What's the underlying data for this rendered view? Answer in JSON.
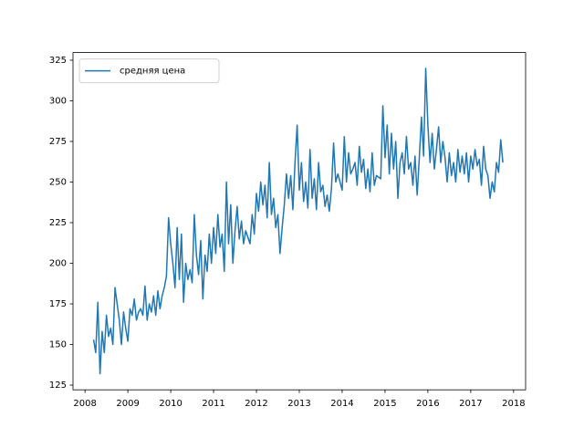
{
  "chart_data": {
    "type": "line",
    "x": [
      2008.2,
      2008.25,
      2008.3,
      2008.35,
      2008.4,
      2008.45,
      2008.5,
      2008.55,
      2008.6,
      2008.65,
      2008.7,
      2008.75,
      2008.8,
      2008.85,
      2008.9,
      2008.95,
      2009,
      2009.05,
      2009.1,
      2009.15,
      2009.2,
      2009.25,
      2009.3,
      2009.35,
      2009.4,
      2009.45,
      2009.5,
      2009.55,
      2009.6,
      2009.65,
      2009.7,
      2009.75,
      2009.8,
      2009.85,
      2009.9,
      2009.95,
      2010,
      2010.05,
      2010.1,
      2010.15,
      2010.2,
      2010.25,
      2010.3,
      2010.35,
      2010.4,
      2010.45,
      2010.5,
      2010.55,
      2010.6,
      2010.65,
      2010.7,
      2010.75,
      2010.8,
      2010.85,
      2010.9,
      2010.95,
      2011,
      2011.05,
      2011.1,
      2011.15,
      2011.2,
      2011.25,
      2011.3,
      2011.35,
      2011.4,
      2011.45,
      2011.5,
      2011.55,
      2011.6,
      2011.65,
      2011.7,
      2011.75,
      2011.8,
      2011.85,
      2011.9,
      2011.95,
      2012,
      2012.05,
      2012.1,
      2012.15,
      2012.2,
      2012.25,
      2012.3,
      2012.35,
      2012.4,
      2012.45,
      2012.5,
      2012.55,
      2012.6,
      2012.65,
      2012.7,
      2012.75,
      2012.8,
      2012.85,
      2012.9,
      2012.95,
      2013,
      2013.05,
      2013.1,
      2013.15,
      2013.2,
      2013.25,
      2013.3,
      2013.35,
      2013.4,
      2013.45,
      2013.5,
      2013.55,
      2013.6,
      2013.65,
      2013.7,
      2013.75,
      2013.8,
      2013.85,
      2013.9,
      2013.95,
      2014,
      2014.05,
      2014.1,
      2014.15,
      2014.2,
      2014.25,
      2014.3,
      2014.35,
      2014.4,
      2014.45,
      2014.5,
      2014.55,
      2014.6,
      2014.65,
      2014.7,
      2014.75,
      2014.8,
      2014.85,
      2014.9,
      2014.95,
      2015,
      2015.05,
      2015.1,
      2015.15,
      2015.2,
      2015.25,
      2015.3,
      2015.35,
      2015.4,
      2015.45,
      2015.5,
      2015.55,
      2015.6,
      2015.65,
      2015.7,
      2015.75,
      2015.8,
      2015.85,
      2015.9,
      2015.95,
      2016,
      2016.05,
      2016.1,
      2016.15,
      2016.2,
      2016.25,
      2016.3,
      2016.35,
      2016.4,
      2016.45,
      2016.5,
      2016.55,
      2016.6,
      2016.65,
      2016.7,
      2016.75,
      2016.8,
      2016.85,
      2016.9,
      2016.95,
      2017,
      2017.05,
      2017.1,
      2017.15,
      2017.2,
      2017.25,
      2017.3,
      2017.35,
      2017.4,
      2017.45,
      2017.5,
      2017.55,
      2017.6,
      2017.65,
      2017.7,
      2017.75
    ],
    "series": [
      {
        "name": "средняя цена",
        "color": "#1f77b4",
        "values": [
          153,
          145,
          176,
          132,
          158,
          145,
          168,
          155,
          160,
          150,
          185,
          175,
          165,
          150,
          170,
          160,
          152,
          172,
          168,
          178,
          165,
          170,
          172,
          168,
          186,
          165,
          175,
          170,
          180,
          168,
          183,
          172,
          180,
          185,
          192,
          228,
          212,
          200,
          185,
          222,
          190,
          218,
          176,
          200,
          190,
          196,
          188,
          230,
          205,
          193,
          214,
          178,
          205,
          195,
          218,
          200,
          222,
          206,
          230,
          210,
          218,
          195,
          250,
          212,
          236,
          200,
          220,
          235,
          215,
          226,
          212,
          220,
          216,
          212,
          230,
          218,
          243,
          232,
          250,
          236,
          248,
          228,
          262,
          230,
          240,
          222,
          230,
          206,
          222,
          236,
          255,
          240,
          254,
          233,
          262,
          285,
          245,
          262,
          238,
          250,
          234,
          270,
          240,
          252,
          233,
          262,
          244,
          248,
          235,
          242,
          232,
          246,
          274,
          250,
          255,
          250,
          245,
          278,
          250,
          268,
          255,
          258,
          262,
          248,
          272,
          256,
          264,
          246,
          258,
          244,
          268,
          248,
          254,
          253,
          252,
          297,
          265,
          285,
          255,
          280,
          258,
          275,
          240,
          262,
          268,
          255,
          278,
          258,
          262,
          248,
          266,
          242,
          265,
          290,
          266,
          320,
          285,
          262,
          280,
          258,
          270,
          284,
          262,
          275,
          265,
          250,
          268,
          254,
          262,
          250,
          270,
          256,
          266,
          255,
          268,
          250,
          266,
          258,
          270,
          260,
          264,
          248,
          272,
          258,
          254,
          240,
          250,
          244,
          262,
          256,
          276,
          262
        ]
      }
    ],
    "xlim": [
      2007.72,
      2018.28
    ],
    "xticks": [
      2008,
      2009,
      2010,
      2011,
      2012,
      2013,
      2014,
      2015,
      2016,
      2017,
      2018
    ],
    "ylim": [
      122.1,
      329.7
    ],
    "yticks": [
      125,
      150,
      175,
      200,
      225,
      250,
      275,
      300,
      325
    ],
    "legend": "upper left"
  }
}
